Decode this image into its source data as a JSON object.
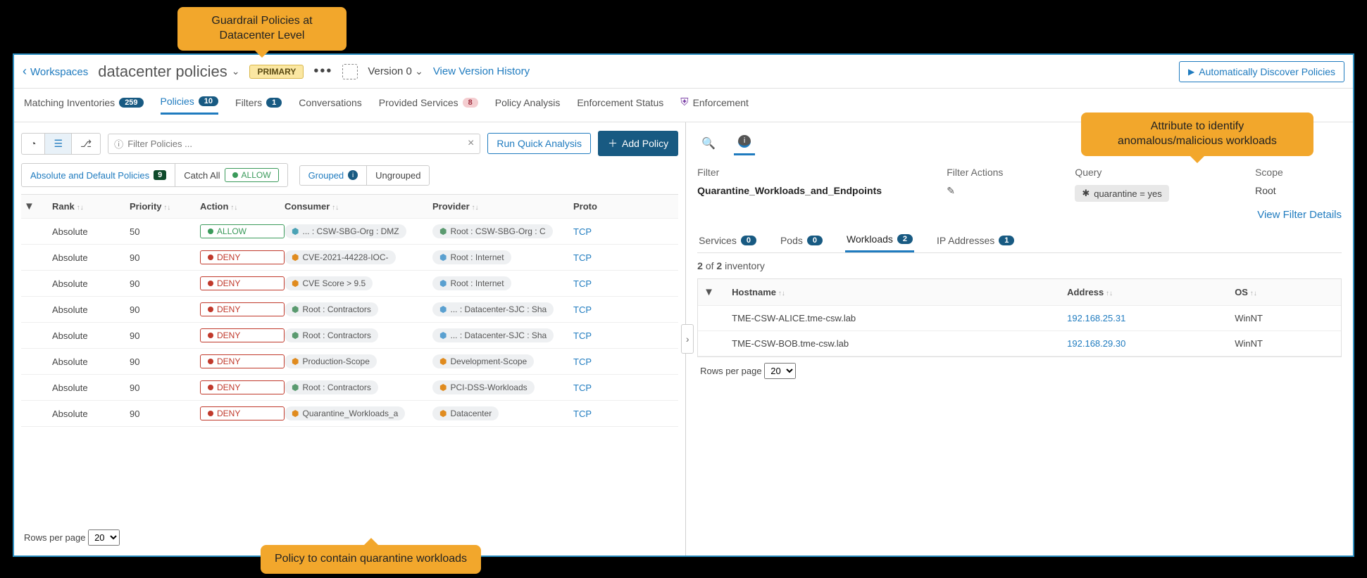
{
  "callouts": {
    "top": "Guardrail Policies at\nDatacenter Level",
    "right": "Attribute to identify\nanomalous/malicious workloads",
    "bottom": "Policy to contain quarantine workloads"
  },
  "header": {
    "back": "Workspaces",
    "title": "datacenter policies",
    "primary": "PRIMARY",
    "version": "Version 0",
    "history": "View Version History",
    "discover": "Automatically Discover Policies"
  },
  "tabs": [
    {
      "label": "Matching Inventories",
      "count": "259"
    },
    {
      "label": "Policies",
      "count": "10",
      "active": true
    },
    {
      "label": "Filters",
      "count": "1"
    },
    {
      "label": "Conversations"
    },
    {
      "label": "Provided Services",
      "count": "8",
      "pink": true
    },
    {
      "label": "Policy Analysis"
    },
    {
      "label": "Enforcement Status"
    },
    {
      "label": "Enforcement",
      "shield": true
    }
  ],
  "left": {
    "filter_placeholder": "Filter Policies ...",
    "run_quick": "Run Quick Analysis",
    "add_policy": "Add Policy",
    "abs_default": "Absolute and Default Policies",
    "abs_count": "9",
    "catch_all": "Catch All",
    "catch_action": "ALLOW",
    "grouped": "Grouped",
    "ungrouped": "Ungrouped",
    "cols": {
      "rank": "Rank",
      "priority": "Priority",
      "action": "Action",
      "consumer": "Consumer",
      "provider": "Provider",
      "proto": "Proto"
    },
    "rows": [
      {
        "rank": "Absolute",
        "priority": "50",
        "action": "ALLOW",
        "consumer": "... : CSW-SBG-Org : DMZ",
        "c_ic": "teal",
        "provider": "Root : CSW-SBG-Org : C",
        "p_ic": "green",
        "proto": "TCP"
      },
      {
        "rank": "Absolute",
        "priority": "90",
        "action": "DENY",
        "consumer": "CVE-2021-44228-IOC-",
        "c_ic": "orange",
        "provider": "Root : Internet",
        "p_ic": "blue",
        "proto": "TCP"
      },
      {
        "rank": "Absolute",
        "priority": "90",
        "action": "DENY",
        "consumer": "CVE Score > 9.5",
        "c_ic": "orange",
        "provider": "Root : Internet",
        "p_ic": "blue",
        "proto": "TCP"
      },
      {
        "rank": "Absolute",
        "priority": "90",
        "action": "DENY",
        "consumer": "Root : Contractors",
        "c_ic": "green",
        "provider": "... : Datacenter-SJC : Sha",
        "p_ic": "blue",
        "proto": "TCP"
      },
      {
        "rank": "Absolute",
        "priority": "90",
        "action": "DENY",
        "consumer": "Root : Contractors",
        "c_ic": "green",
        "provider": "... : Datacenter-SJC : Sha",
        "p_ic": "blue",
        "proto": "TCP"
      },
      {
        "rank": "Absolute",
        "priority": "90",
        "action": "DENY",
        "consumer": "Production-Scope",
        "c_ic": "orange",
        "provider": "Development-Scope",
        "p_ic": "orange",
        "proto": "TCP"
      },
      {
        "rank": "Absolute",
        "priority": "90",
        "action": "DENY",
        "consumer": "Root : Contractors",
        "c_ic": "green",
        "provider": "PCI-DSS-Workloads",
        "p_ic": "orange",
        "proto": "TCP"
      },
      {
        "rank": "Absolute",
        "priority": "90",
        "action": "DENY",
        "consumer": "Quarantine_Workloads_a",
        "c_ic": "orange",
        "provider": "Datacenter",
        "p_ic": "orange",
        "proto": "TCP"
      }
    ],
    "rows_per_label": "Rows per page",
    "rows_per_value": "20"
  },
  "right": {
    "labels": {
      "filter": "Filter",
      "actions": "Filter Actions",
      "query": "Query",
      "scope": "Scope"
    },
    "filter_name": "Quarantine_Workloads_and_Endpoints",
    "query": "quarantine = yes",
    "scope": "Root",
    "view_details": "View Filter Details",
    "subtabs": [
      {
        "label": "Services",
        "count": "0"
      },
      {
        "label": "Pods",
        "count": "0"
      },
      {
        "label": "Workloads",
        "count": "2",
        "active": true
      },
      {
        "label": "IP Addresses",
        "count": "1"
      }
    ],
    "inv_count_strong": "2",
    "inv_count_of": " of ",
    "inv_count_total": "2",
    "inv_count_tail": " inventory",
    "wcols": {
      "hostname": "Hostname",
      "address": "Address",
      "os": "OS"
    },
    "wrows": [
      {
        "hostname": "TME-CSW-ALICE.tme-csw.lab",
        "address": "192.168.25.31",
        "os": "WinNT"
      },
      {
        "hostname": "TME-CSW-BOB.tme-csw.lab",
        "address": "192.168.29.30",
        "os": "WinNT"
      }
    ],
    "rows_per_label": "Rows per page",
    "rows_per_value": "20"
  }
}
